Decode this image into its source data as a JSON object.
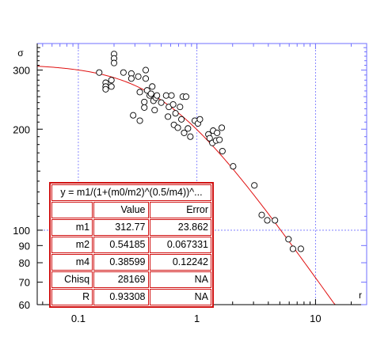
{
  "chart_data": {
    "type": "scatter",
    "title": "",
    "xlabel": "r",
    "ylabel": "σ",
    "x_scale": "log",
    "y_scale": "log",
    "xlim": [
      0.045,
      27
    ],
    "ylim": [
      60,
      360
    ],
    "x_ticks": [
      {
        "value": 0.1,
        "label": "0.1"
      },
      {
        "value": 1,
        "label": "1"
      },
      {
        "value": 10,
        "label": "10"
      }
    ],
    "y_ticks": [
      {
        "value": 60,
        "label": "60"
      },
      {
        "value": 70,
        "label": "70"
      },
      {
        "value": 80,
        "label": "80"
      },
      {
        "value": 90,
        "label": "90"
      },
      {
        "value": 100,
        "label": "100"
      },
      {
        "value": 200,
        "label": "200"
      },
      {
        "value": 300,
        "label": "300"
      }
    ],
    "grid": "dotted at major x ticks (0.1, 1, 10) and y = 100",
    "points": [
      [
        0.15,
        295
      ],
      [
        0.17,
        275
      ],
      [
        0.17,
        268
      ],
      [
        0.17,
        263
      ],
      [
        0.19,
        280
      ],
      [
        0.19,
        268
      ],
      [
        0.2,
        335
      ],
      [
        0.2,
        325
      ],
      [
        0.2,
        315
      ],
      [
        0.24,
        295
      ],
      [
        0.28,
        293
      ],
      [
        0.28,
        283
      ],
      [
        0.29,
        220
      ],
      [
        0.32,
        287
      ],
      [
        0.33,
        258
      ],
      [
        0.33,
        212
      ],
      [
        0.36,
        241
      ],
      [
        0.36,
        232
      ],
      [
        0.37,
        300
      ],
      [
        0.37,
        283
      ],
      [
        0.38,
        261
      ],
      [
        0.4,
        252
      ],
      [
        0.41,
        255
      ],
      [
        0.42,
        268
      ],
      [
        0.43,
        243
      ],
      [
        0.44,
        228
      ],
      [
        0.45,
        248
      ],
      [
        0.46,
        252
      ],
      [
        0.5,
        240
      ],
      [
        0.55,
        252
      ],
      [
        0.57,
        218
      ],
      [
        0.58,
        233
      ],
      [
        0.61,
        252
      ],
      [
        0.63,
        237
      ],
      [
        0.64,
        206
      ],
      [
        0.66,
        223
      ],
      [
        0.69,
        202
      ],
      [
        0.72,
        233
      ],
      [
        0.74,
        214
      ],
      [
        0.76,
        250
      ],
      [
        0.78,
        195
      ],
      [
        0.81,
        250
      ],
      [
        0.84,
        201
      ],
      [
        0.88,
        190
      ],
      [
        0.96,
        212
      ],
      [
        1.02,
        208
      ],
      [
        1.06,
        214
      ],
      [
        1.25,
        193
      ],
      [
        1.28,
        188
      ],
      [
        1.35,
        182
      ],
      [
        1.37,
        198
      ],
      [
        1.45,
        185
      ],
      [
        1.48,
        195
      ],
      [
        1.55,
        186
      ],
      [
        1.62,
        202
      ],
      [
        1.64,
        172
      ],
      [
        2.02,
        155
      ],
      [
        3.05,
        136
      ],
      [
        3.52,
        111
      ],
      [
        3.92,
        107
      ],
      [
        4.55,
        107
      ],
      [
        5.92,
        94
      ],
      [
        6.45,
        88
      ],
      [
        7.52,
        88
      ]
    ],
    "fit": {
      "equation": "y = m1/(1+(m0/m2)^(0.5/m4))^...",
      "columns": [
        "",
        "Value",
        "Error"
      ],
      "rows": [
        {
          "name": "m1",
          "value": "312.77",
          "error": "23.862"
        },
        {
          "name": "m2",
          "value": "0.54185",
          "error": "0.067331"
        },
        {
          "name": "m4",
          "value": "0.38599",
          "error": "0.12242"
        },
        {
          "name": "Chisq",
          "value": "28169",
          "error": "NA"
        },
        {
          "name": "R",
          "value": "0.93308",
          "error": "NA"
        }
      ],
      "m1": 312.77,
      "m2": 0.54185,
      "m4": 0.38599
    },
    "colors": {
      "axis": "#000000",
      "grid": "#6f6fff",
      "points": "#000000",
      "fit_line": "#e01010",
      "table_border": "#d01010"
    }
  }
}
